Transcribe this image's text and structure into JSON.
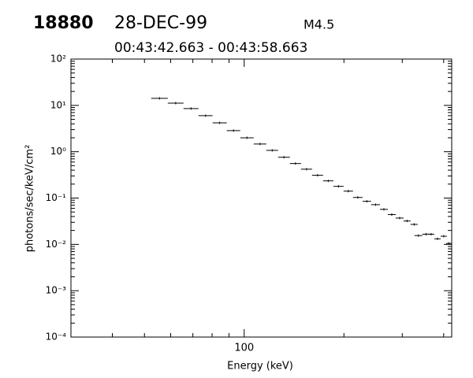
{
  "chart_data": {
    "type": "errorbar",
    "title": "18880",
    "date": "28-DEC-99",
    "class": "M4.5",
    "subtitle": "00:43:42.663 - 00:43:58.663",
    "xlabel": "Energy (keV)",
    "ylabel": "photons/sec/keV/cm²",
    "x_low": [
      52.4,
      58.8,
      65.6,
      72.8,
      80.3,
      88.6,
      97.3,
      106.8,
      116.6,
      126.6,
      137.4,
      148.4,
      160.3,
      173,
      185.9,
      199.5,
      213,
      227.6,
      241.6,
      256.9,
      271.3,
      286.6,
      302.7,
      317.8,
      326.6,
      345,
      358.7,
      374.8,
      391.6,
      406.9
    ],
    "x_high": [
      58.8,
      65.6,
      72.8,
      80.3,
      88.6,
      97.3,
      106.8,
      116.6,
      126.6,
      137.4,
      148.4,
      160.3,
      173,
      185.9,
      199.5,
      213,
      227.6,
      241.6,
      256.9,
      271.3,
      286.6,
      302.7,
      317.8,
      334,
      345,
      363,
      374.8,
      391.6,
      409,
      422.8
    ],
    "values": [
      14.2,
      11.2,
      8.55,
      6.0,
      4.2,
      2.86,
      2.0,
      1.47,
      1.07,
      0.76,
      0.556,
      0.42,
      0.31,
      0.235,
      0.179,
      0.141,
      0.103,
      0.085,
      0.072,
      0.057,
      0.044,
      0.037,
      0.032,
      0.027,
      0.0155,
      0.0166,
      0.0166,
      0.0132,
      0.015,
      0.0105
    ],
    "color": "#000000",
    "xlim": [
      30,
      423
    ],
    "xticks": [
      100
    ],
    "xlog": true,
    "ylim": [
      0.0001,
      100
    ],
    "ylog": true,
    "yticks": [
      {
        "value": 0.0001,
        "label": "10⁻⁴"
      },
      {
        "value": 0.001,
        "label": "10⁻³"
      },
      {
        "value": 0.01,
        "label": "10⁻²"
      },
      {
        "value": 0.1,
        "label": "10⁻¹"
      },
      {
        "value": 1,
        "label": "10⁰"
      },
      {
        "value": 10,
        "label": "10¹"
      },
      {
        "value": 100,
        "label": "10²"
      }
    ]
  }
}
